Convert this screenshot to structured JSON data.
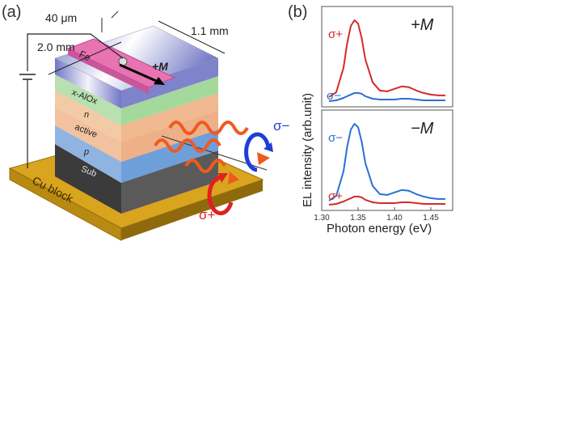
{
  "panel_a": {
    "label": "(a)",
    "dim_width": "40 μm",
    "dim_length": "2.0 mm",
    "dim_depth": "1.1 mm",
    "electrode": "Fe",
    "magnetization": "+M",
    "layers": [
      "x-AlOx",
      "n",
      "active",
      "p",
      "Sub"
    ],
    "base": "Cu block",
    "sigma_plus": "σ+",
    "sigma_minus": "σ−"
  },
  "panel_b": {
    "label": "(b)",
    "ylabel": "EL intensity (arb.unit)",
    "xlabel": "Photon energy (eV)",
    "top_tag": "+M",
    "bottom_tag": "−M",
    "sigma_plus": "σ+",
    "sigma_minus": "σ−"
  },
  "colors": {
    "sigma_plus": "#d42a2a",
    "sigma_minus": "#2a6fd4",
    "copper": "#d6a018",
    "fe": "#e873b3",
    "wave": "#f05a1e"
  },
  "chart_data": [
    {
      "type": "line",
      "panel": "+M",
      "x": [
        1.31,
        1.32,
        1.33,
        1.335,
        1.34,
        1.345,
        1.35,
        1.355,
        1.36,
        1.37,
        1.38,
        1.39,
        1.4,
        1.41,
        1.42,
        1.43,
        1.44,
        1.45,
        1.46,
        1.47
      ],
      "series": [
        {
          "name": "σ+",
          "color": "#d42a2a",
          "values": [
            0.06,
            0.12,
            0.42,
            0.72,
            0.93,
            1.0,
            0.96,
            0.78,
            0.52,
            0.24,
            0.14,
            0.13,
            0.16,
            0.19,
            0.18,
            0.14,
            0.11,
            0.09,
            0.08,
            0.08
          ]
        },
        {
          "name": "σ−",
          "color": "#2a6fd4",
          "values": [
            0.01,
            0.02,
            0.05,
            0.07,
            0.09,
            0.11,
            0.11,
            0.1,
            0.07,
            0.04,
            0.03,
            0.03,
            0.03,
            0.04,
            0.04,
            0.03,
            0.02,
            0.02,
            0.02,
            0.02
          ]
        }
      ],
      "xlim": [
        1.3,
        1.48
      ],
      "ylim": [
        0,
        1.05
      ]
    },
    {
      "type": "line",
      "panel": "−M",
      "x": [
        1.31,
        1.32,
        1.33,
        1.335,
        1.34,
        1.345,
        1.35,
        1.355,
        1.36,
        1.37,
        1.38,
        1.39,
        1.4,
        1.41,
        1.42,
        1.43,
        1.44,
        1.45,
        1.46,
        1.47
      ],
      "series": [
        {
          "name": "σ−",
          "color": "#2a6fd4",
          "values": [
            0.06,
            0.12,
            0.42,
            0.72,
            0.93,
            1.0,
            0.96,
            0.78,
            0.52,
            0.24,
            0.14,
            0.13,
            0.16,
            0.19,
            0.18,
            0.14,
            0.11,
            0.09,
            0.08,
            0.08
          ]
        },
        {
          "name": "σ+",
          "color": "#d42a2a",
          "values": [
            0.01,
            0.02,
            0.05,
            0.07,
            0.09,
            0.11,
            0.11,
            0.1,
            0.07,
            0.04,
            0.03,
            0.03,
            0.03,
            0.04,
            0.04,
            0.03,
            0.02,
            0.02,
            0.02,
            0.02
          ]
        }
      ],
      "xticks": [
        "1.30",
        "1.35",
        "1.40",
        "1.45"
      ],
      "xlim": [
        1.3,
        1.48
      ],
      "ylim": [
        0,
        1.05
      ]
    }
  ]
}
